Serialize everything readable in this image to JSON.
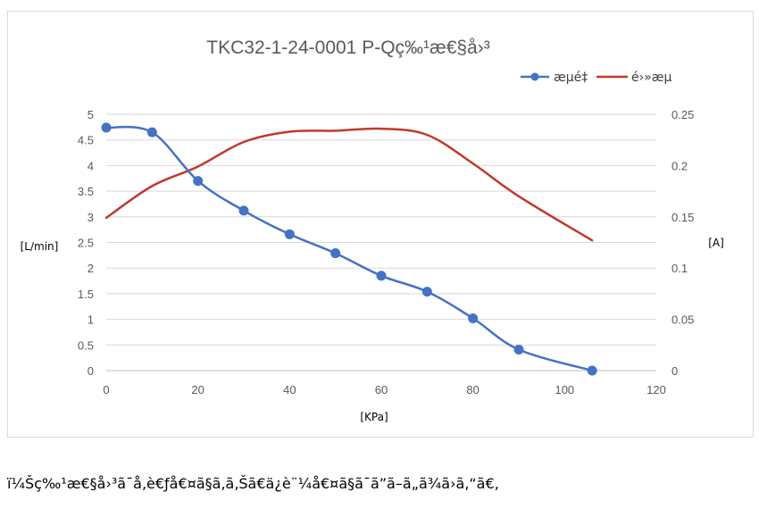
{
  "chart_data": {
    "type": "line",
    "title": "TKC32-1-24-0001 P-Qç‰¹æ€§å›³",
    "xlabel": "[KPa]",
    "ylabel_left": "[L/min]",
    "ylabel_right": "[A]",
    "xlim": [
      0,
      120
    ],
    "ylim_left": [
      0,
      5
    ],
    "ylim_right": [
      0,
      0.25
    ],
    "x_ticks": [
      "0",
      "20",
      "40",
      "60",
      "80",
      "100",
      "120"
    ],
    "y_ticks_left": [
      "0",
      "0.5",
      "1",
      "1.5",
      "2",
      "2.5",
      "3",
      "3.5",
      "4",
      "4.5",
      "5"
    ],
    "y_ticks_right": [
      "0",
      "0.05",
      "0.1",
      "0.15",
      "0.2",
      "0.25"
    ],
    "grid": "horizontal",
    "legend_position": "top-right",
    "series": [
      {
        "name": "æµé‡",
        "axis": "left",
        "color": "#4472c4",
        "markers": true,
        "x": [
          0,
          10,
          20,
          30,
          40,
          50,
          60,
          70,
          80,
          90,
          106
        ],
        "y": [
          4.74,
          4.65,
          3.7,
          3.12,
          2.66,
          2.29,
          1.85,
          1.54,
          1.02,
          0.41,
          0.0
        ]
      },
      {
        "name": "é›»æµ",
        "axis": "right",
        "color": "#c0392b",
        "markers": false,
        "x": [
          0,
          10,
          20,
          30,
          40,
          50,
          60,
          70,
          80,
          90,
          106
        ],
        "y": [
          0.149,
          0.18,
          0.199,
          0.223,
          0.233,
          0.234,
          0.236,
          0.23,
          0.202,
          0.17,
          0.127
        ]
      }
    ]
  },
  "footnote": "ï¼Šç‰¹æ€§å›³ã¯å‚è€ƒå€¤ã§ã‚ã‚Šã€ä¿è¨¼å€¤ã§ã¯ã”ã–ã„ã¾ã›ã‚“ã€‚"
}
